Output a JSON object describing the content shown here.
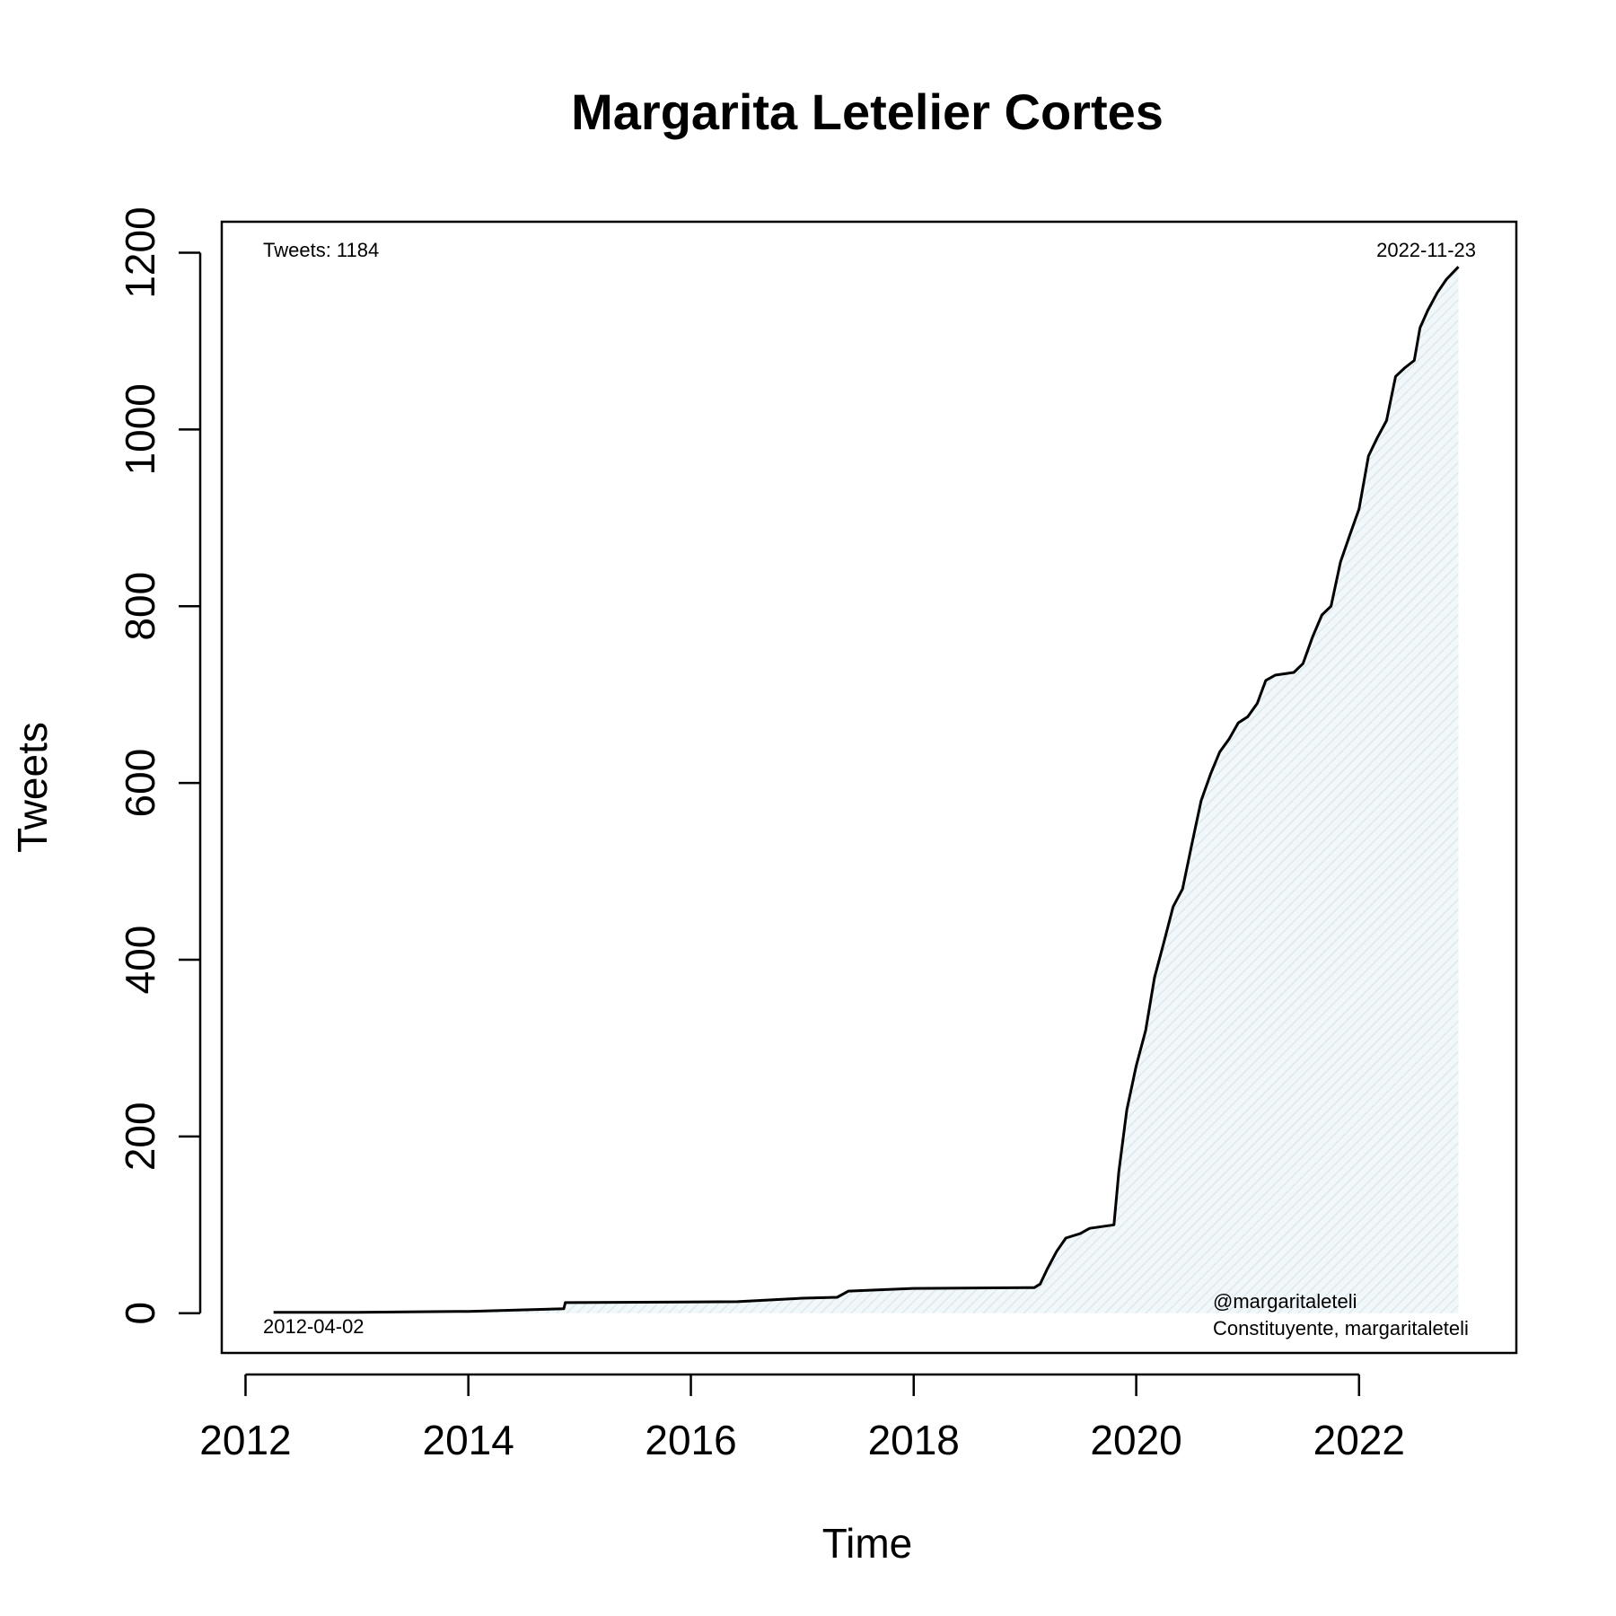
{
  "chart_data": {
    "type": "line",
    "title": "Margarita Letelier Cortes",
    "xlabel": "Time",
    "ylabel": "Tweets",
    "x_ticks": [
      "2012",
      "2014",
      "2016",
      "2018",
      "2020",
      "2022"
    ],
    "y_ticks": [
      "0",
      "200",
      "400",
      "600",
      "800",
      "1000",
      "1200"
    ],
    "xlim": [
      "2011-10-15",
      "2023-06-01"
    ],
    "ylim": [
      -45,
      1235
    ],
    "fill_color": "#e6f0f4",
    "line_color": "#000000",
    "annotations": {
      "total": "Tweets: 1184",
      "start_date": "2012-04-02",
      "end_date": "2022-11-23",
      "handle": "@margaritaleteli",
      "description": "Constituyente, margaritaleteli"
    },
    "series": [
      {
        "points": [
          [
            "2012-04-02",
            1
          ],
          [
            "2013-01-01",
            1
          ],
          [
            "2014-01-01",
            2
          ],
          [
            "2014-11-10",
            5
          ],
          [
            "2014-11-15",
            12
          ],
          [
            "2016-06-01",
            13
          ],
          [
            "2017-01-01",
            17
          ],
          [
            "2017-04-25",
            18
          ],
          [
            "2017-06-01",
            25
          ],
          [
            "2018-01-01",
            28
          ],
          [
            "2019-02-01",
            29
          ],
          [
            "2019-02-20",
            33
          ],
          [
            "2019-03-15",
            50
          ],
          [
            "2019-04-15",
            70
          ],
          [
            "2019-05-15",
            85
          ],
          [
            "2019-07-01",
            90
          ],
          [
            "2019-08-01",
            96
          ],
          [
            "2019-10-20",
            100
          ],
          [
            "2019-11-05",
            160
          ],
          [
            "2019-12-01",
            230
          ],
          [
            "2020-01-01",
            280
          ],
          [
            "2020-02-01",
            320
          ],
          [
            "2020-03-01",
            380
          ],
          [
            "2020-04-01",
            420
          ],
          [
            "2020-05-01",
            460
          ],
          [
            "2020-06-01",
            480
          ],
          [
            "2020-07-01",
            530
          ],
          [
            "2020-08-01",
            580
          ],
          [
            "2020-09-01",
            610
          ],
          [
            "2020-10-01",
            635
          ],
          [
            "2020-11-01",
            650
          ],
          [
            "2020-12-01",
            668
          ],
          [
            "2021-01-01",
            675
          ],
          [
            "2021-02-01",
            690
          ],
          [
            "2021-03-01",
            716
          ],
          [
            "2021-04-01",
            722
          ],
          [
            "2021-06-01",
            725
          ],
          [
            "2021-07-01",
            735
          ],
          [
            "2021-08-01",
            765
          ],
          [
            "2021-09-01",
            790
          ],
          [
            "2021-10-01",
            800
          ],
          [
            "2021-11-01",
            850
          ],
          [
            "2021-12-01",
            880
          ],
          [
            "2022-01-01",
            910
          ],
          [
            "2022-02-01",
            970
          ],
          [
            "2022-03-01",
            990
          ],
          [
            "2022-04-01",
            1010
          ],
          [
            "2022-05-01",
            1060
          ],
          [
            "2022-06-01",
            1070
          ],
          [
            "2022-07-01",
            1078
          ],
          [
            "2022-07-20",
            1115
          ],
          [
            "2022-08-15",
            1135
          ],
          [
            "2022-09-15",
            1155
          ],
          [
            "2022-10-15",
            1170
          ],
          [
            "2022-11-23",
            1184
          ]
        ]
      }
    ]
  }
}
